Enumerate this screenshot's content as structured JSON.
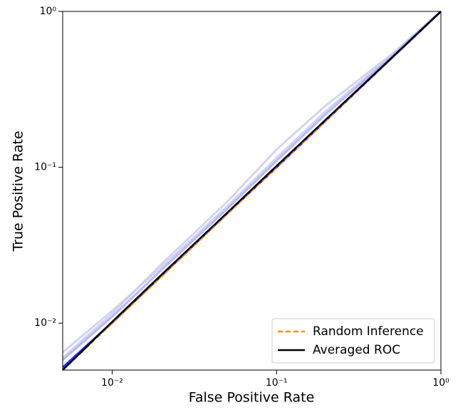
{
  "chart_data": {
    "type": "line",
    "xlabel": "False Positive Rate",
    "ylabel": "True Positive Rate",
    "log_x": true,
    "log_y": true,
    "xlim": [
      0.005,
      1
    ],
    "ylim": [
      0.005,
      1
    ],
    "xticks": [
      {
        "value": 0.01,
        "label": "10⁻²"
      },
      {
        "value": 0.1,
        "label": "10⁻¹"
      },
      {
        "value": 1,
        "label": "10⁰"
      }
    ],
    "yticks": [
      {
        "value": 0.01,
        "label": "10⁻²"
      },
      {
        "value": 0.1,
        "label": "10⁻¹"
      },
      {
        "value": 1,
        "label": "10⁰"
      }
    ],
    "legend": "lower right",
    "x": [
      0.005,
      0.01,
      0.02,
      0.05,
      0.1,
      0.2,
      0.5,
      1
    ],
    "series": [
      {
        "name": "Random Inference",
        "color": "#ff8c00",
        "dashed": true,
        "values": [
          0.005,
          0.01,
          0.02,
          0.05,
          0.1,
          0.2,
          0.5,
          1
        ]
      },
      {
        "name": "Averaged ROC",
        "color": "#000000",
        "values": [
          0.005,
          0.0102,
          0.0205,
          0.051,
          0.102,
          0.203,
          0.502,
          1
        ]
      },
      {
        "color": "#c8c8f4",
        "values": [
          0.0065,
          0.012,
          0.023,
          0.056,
          0.115,
          0.23,
          0.52,
          1
        ]
      },
      {
        "color": "#c8c8f4",
        "values": [
          0.006,
          0.0115,
          0.024,
          0.06,
          0.13,
          0.25,
          0.53,
          1
        ]
      },
      {
        "color": "#a8a8f0",
        "values": [
          0.0058,
          0.011,
          0.022,
          0.054,
          0.11,
          0.22,
          0.51,
          1
        ]
      },
      {
        "color": "#0000ff",
        "values": [
          0.0052,
          0.0101,
          0.0202,
          0.0505,
          0.1,
          0.2,
          0.5,
          1
        ]
      }
    ]
  }
}
